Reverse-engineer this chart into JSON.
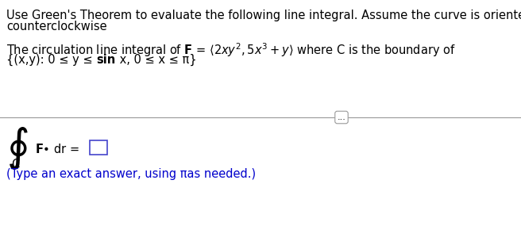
{
  "bg_color": "#ffffff",
  "line1": "Use Green's Theorem to evaluate the following line integral. Assume the curve is oriented",
  "line2": "counterclockwise",
  "line3": "The circulation line integral of $\\mathbf{F}$ = $\\langle 2xy^2,5x^3 + y\\rangle$ where C is the boundary of",
  "line4_part1": "{(x,y): 0 ≤ y ≤ ",
  "line4_bold": "sin",
  "line4_part2": " x, 0 ≤ x ≤ π}",
  "dots_text": "...",
  "integral_line": "$\\mathbf{F}$• dr =",
  "answer_hint": "(Type an exact answer, using πas needed.)",
  "answer_hint_color": "#0000cc",
  "text_color": "#000000",
  "font_size_main": 10.5,
  "separator_color": "#999999",
  "box_edge_color": "#4444cc"
}
